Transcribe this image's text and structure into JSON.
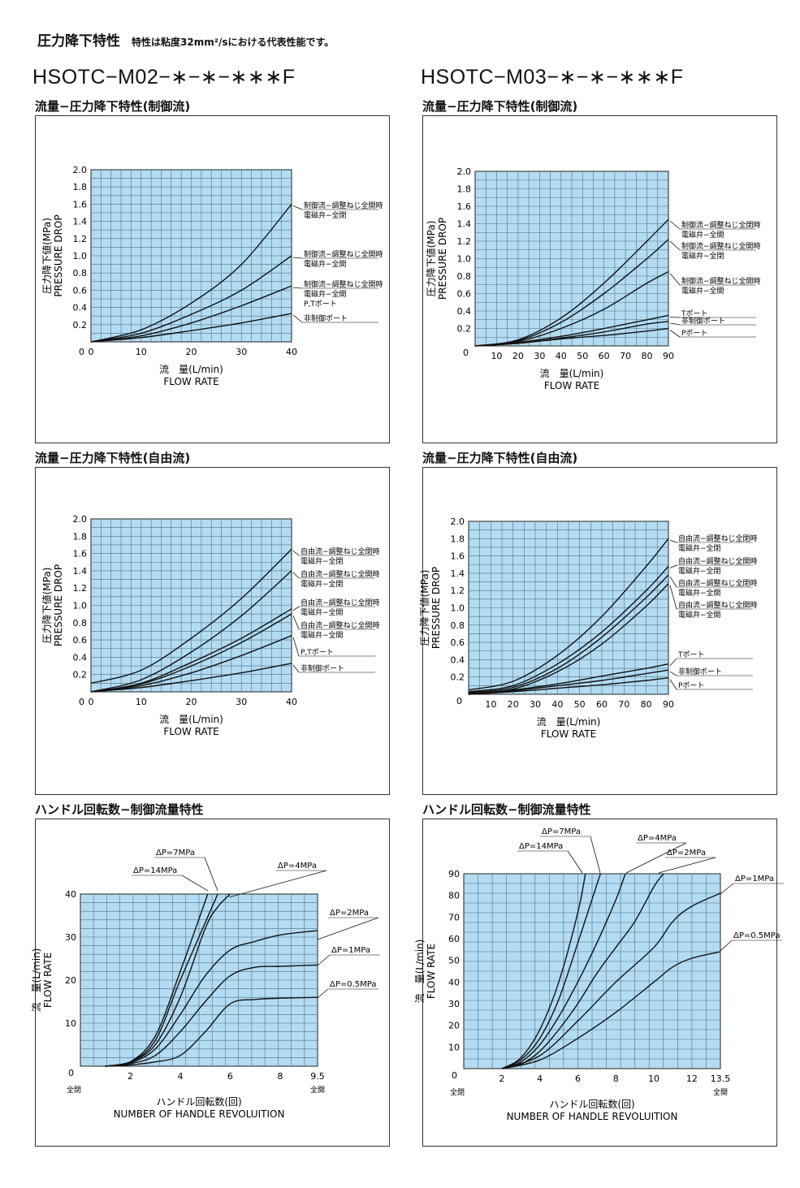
{
  "header": {
    "title": "圧力降下特性",
    "note": "特性は粘度32mm²/sにおける代表性能です。"
  },
  "models": {
    "left": "HSOTC−M02−∗−∗−∗∗∗F",
    "right": "HSOTC−M03−∗−∗−∗∗∗F"
  },
  "sections": {
    "controlled": "流量−圧力降下特性(制御流)",
    "free": "流量−圧力降下特性(自由流)",
    "handle": "ハンドル回転数−制御流量特性"
  },
  "chart_data": [
    {
      "id": "m02_control",
      "type": "line",
      "xlabel": "流　量(L/min)",
      "xlabel2": "FLOW RATE",
      "ylabel": "圧力降下値(MPa)",
      "ylabel2": "PRESSURE DROP",
      "xlim": [
        0,
        40
      ],
      "ylim": [
        0,
        2.0
      ],
      "xticks": [
        0,
        10,
        20,
        30,
        40
      ],
      "yticks": [
        0.2,
        0.4,
        0.6,
        0.8,
        1.0,
        1.2,
        1.4,
        1.6,
        1.8,
        2.0
      ],
      "series": [
        {
          "x": [
            0,
            10,
            20,
            30,
            40
          ],
          "y": [
            0,
            0.14,
            0.45,
            0.9,
            1.6
          ]
        },
        {
          "x": [
            0,
            10,
            20,
            30,
            40
          ],
          "y": [
            0,
            0.1,
            0.32,
            0.6,
            1.0
          ]
        },
        {
          "x": [
            0,
            10,
            20,
            30,
            40
          ],
          "y": [
            0,
            0.07,
            0.22,
            0.42,
            0.65
          ]
        },
        {
          "x": [
            0,
            10,
            20,
            30,
            40
          ],
          "y": [
            0,
            0.05,
            0.13,
            0.22,
            0.33
          ]
        }
      ],
      "labels": [
        {
          "lines": [
            "制御流−調整ねじ全開時",
            "電磁弁−全閉"
          ],
          "target": 0
        },
        {
          "lines": [
            "制御流−調整ねじ全開時",
            "電磁弁−全開"
          ],
          "target": 1
        },
        {
          "lines": [
            "制御流−調整ねじ全開時",
            "電磁弁−全開",
            "P,Tポート"
          ],
          "target": 2
        },
        {
          "lines": [
            "非制御ポート"
          ],
          "target": 3
        }
      ]
    },
    {
      "id": "m03_control",
      "type": "line",
      "xlabel": "流　量(L/min)",
      "xlabel2": "FLOW RATE",
      "ylabel": "圧力降下値(MPa)",
      "ylabel2": "PRESSURE DROP",
      "xlim": [
        0,
        90
      ],
      "ylim": [
        0,
        2.0
      ],
      "xticks": [
        10,
        20,
        30,
        40,
        50,
        60,
        70,
        80,
        90
      ],
      "yticks": [
        0.2,
        0.4,
        0.6,
        0.8,
        1.0,
        1.2,
        1.4,
        1.6,
        1.8,
        2.0
      ],
      "origin_label": "0",
      "series": [
        {
          "x": [
            0,
            20,
            40,
            60,
            80,
            90
          ],
          "y": [
            0,
            0.07,
            0.32,
            0.72,
            1.2,
            1.45
          ]
        },
        {
          "x": [
            0,
            20,
            40,
            60,
            80,
            90
          ],
          "y": [
            0,
            0.06,
            0.27,
            0.6,
            1.0,
            1.22
          ]
        },
        {
          "x": [
            0,
            20,
            40,
            60,
            80,
            90
          ],
          "y": [
            0,
            0.05,
            0.2,
            0.42,
            0.72,
            0.85
          ]
        },
        {
          "x": [
            0,
            20,
            40,
            60,
            80,
            90
          ],
          "y": [
            0,
            0.04,
            0.11,
            0.2,
            0.3,
            0.35
          ]
        },
        {
          "x": [
            0,
            20,
            40,
            60,
            80,
            90
          ],
          "y": [
            0,
            0.03,
            0.09,
            0.16,
            0.25,
            0.28
          ]
        },
        {
          "x": [
            0,
            20,
            40,
            60,
            80,
            90
          ],
          "y": [
            0,
            0.03,
            0.08,
            0.12,
            0.17,
            0.2
          ]
        }
      ],
      "labels": [
        {
          "lines": [
            "制御流−調整ねじ全閉時",
            "電磁弁−全開"
          ],
          "target": 0
        },
        {
          "lines": [
            "制御流−調整ねじ全開時",
            "電磁弁−全閉"
          ],
          "target": 1
        },
        {
          "lines": [
            "制御流−調整ねじ全開時",
            "電磁弁−全開"
          ],
          "target": 2
        },
        {
          "lines": [
            "Tポート"
          ],
          "target": 3
        },
        {
          "lines": [
            "非制御ポート"
          ],
          "target": 4
        },
        {
          "lines": [
            "Pポート"
          ],
          "target": 5
        }
      ]
    },
    {
      "id": "m02_free",
      "type": "line",
      "xlabel": "流　量(L/min)",
      "xlabel2": "FLOW RATE",
      "ylabel": "圧力降下値(MPa)",
      "ylabel2": "PRESSURE DROP",
      "xlim": [
        0,
        40
      ],
      "ylim": [
        0,
        2.0
      ],
      "xticks": [
        0,
        10,
        20,
        30,
        40
      ],
      "yticks": [
        0.2,
        0.4,
        0.6,
        0.8,
        1.0,
        1.2,
        1.4,
        1.6,
        1.8,
        2.0
      ],
      "series": [
        {
          "x": [
            0,
            10,
            20,
            30,
            40
          ],
          "y": [
            0.1,
            0.25,
            0.62,
            1.08,
            1.65
          ]
        },
        {
          "x": [
            0,
            10,
            20,
            30,
            40
          ],
          "y": [
            0,
            0.14,
            0.46,
            0.88,
            1.4
          ]
        },
        {
          "x": [
            0,
            10,
            20,
            30,
            40
          ],
          "y": [
            0,
            0.1,
            0.34,
            0.62,
            0.96
          ]
        },
        {
          "x": [
            0,
            10,
            20,
            30,
            40
          ],
          "y": [
            0,
            0.09,
            0.3,
            0.57,
            0.9
          ]
        },
        {
          "x": [
            0,
            10,
            20,
            30,
            40
          ],
          "y": [
            0,
            0.07,
            0.22,
            0.42,
            0.65
          ]
        },
        {
          "x": [
            0,
            10,
            20,
            30,
            40
          ],
          "y": [
            0,
            0.05,
            0.13,
            0.22,
            0.33
          ]
        }
      ],
      "labels": [
        {
          "lines": [
            "自由流−調整ねじ全閉時",
            "電磁弁−全閉"
          ],
          "target": 0
        },
        {
          "lines": [
            "自由流−調整ねじ全開時",
            "電磁弁−全閉"
          ],
          "target": 1
        },
        {
          "lines": [
            "自由流−調整ねじ全閉時",
            "電磁弁−全開"
          ],
          "target": 2
        },
        {
          "lines": [
            "自由流−調整ねじ全開時",
            "電磁弁−全開"
          ],
          "target": 3
        },
        {
          "lines": [
            "P,Tポート"
          ],
          "target": 4
        },
        {
          "lines": [
            "非制御ポート"
          ],
          "target": 5
        }
      ]
    },
    {
      "id": "m03_free",
      "type": "line",
      "xlabel": "流　量(L/min)",
      "xlabel2": "FLOW RATE",
      "ylabel": "圧力降下値(MPa)",
      "ylabel2": "PRESSURE DROP",
      "xlim": [
        0,
        90
      ],
      "ylim": [
        0,
        2.0
      ],
      "xticks": [
        10,
        20,
        30,
        40,
        50,
        60,
        70,
        80,
        90
      ],
      "yticks": [
        0.2,
        0.4,
        0.6,
        0.8,
        1.0,
        1.2,
        1.4,
        1.6,
        1.8,
        2.0
      ],
      "origin_label": "0",
      "series": [
        {
          "x": [
            0,
            20,
            40,
            60,
            80,
            90
          ],
          "y": [
            0.05,
            0.15,
            0.45,
            0.9,
            1.48,
            1.8
          ]
        },
        {
          "x": [
            0,
            20,
            40,
            60,
            80,
            90
          ],
          "y": [
            0.03,
            0.1,
            0.35,
            0.72,
            1.2,
            1.48
          ]
        },
        {
          "x": [
            0,
            20,
            40,
            60,
            80,
            90
          ],
          "y": [
            0.02,
            0.08,
            0.3,
            0.66,
            1.12,
            1.38
          ]
        },
        {
          "x": [
            0,
            20,
            40,
            60,
            80,
            90
          ],
          "y": [
            0.01,
            0.06,
            0.26,
            0.58,
            1.02,
            1.28
          ]
        },
        {
          "x": [
            0,
            20,
            40,
            60,
            80,
            90
          ],
          "y": [
            0,
            0.05,
            0.12,
            0.21,
            0.3,
            0.35
          ]
        },
        {
          "x": [
            0,
            20,
            40,
            60,
            80,
            90
          ],
          "y": [
            0,
            0.04,
            0.1,
            0.16,
            0.24,
            0.28
          ]
        },
        {
          "x": [
            0,
            20,
            40,
            60,
            80,
            90
          ],
          "y": [
            0,
            0.03,
            0.07,
            0.11,
            0.16,
            0.19
          ]
        }
      ],
      "labels": [
        {
          "lines": [
            "自由流−調整ねじ全閉時",
            "電磁弁−全閉"
          ],
          "target": 0
        },
        {
          "lines": [
            "自由流−調整ねじ全開時",
            "電磁弁−全閉"
          ],
          "target": 1
        },
        {
          "lines": [
            "自由流−調整ねじ全閉時",
            "電磁弁−全開"
          ],
          "target": 2
        },
        {
          "lines": [
            "自由流−調整ねじ全開時",
            "電磁弁−全開"
          ],
          "target": 3
        },
        {
          "lines": [
            "Tポート"
          ],
          "target": 4
        },
        {
          "lines": [
            "非制御ポート"
          ],
          "target": 5
        },
        {
          "lines": [
            "Pポート"
          ],
          "target": 6
        }
      ]
    },
    {
      "id": "m02_handle",
      "type": "line",
      "xlabel": "ハンドル回転数(回)",
      "xlabel2": "NUMBER OF HANDLE REVOLUITION",
      "ylabel": "流　量(L/min)",
      "ylabel2": "FLOW RATE",
      "xlim": [
        0,
        9.5
      ],
      "ylim": [
        0,
        40
      ],
      "xticks": [
        2,
        4,
        6,
        8,
        9.5
      ],
      "yticks": [
        10,
        20,
        30,
        40
      ],
      "origin_label": "0",
      "x_start_label": "全閉",
      "x_end_label": "全開",
      "series": [
        {
          "name": "ΔP=14MPa",
          "x": [
            1,
            2,
            3,
            4,
            5.1
          ],
          "y": [
            0,
            1,
            7,
            22,
            40
          ]
        },
        {
          "name": "ΔP=7MPa",
          "x": [
            1,
            2,
            3,
            4,
            5.5
          ],
          "y": [
            0,
            1,
            6,
            20,
            40
          ]
        },
        {
          "name": "ΔP=4MPa",
          "x": [
            1,
            2,
            3,
            4,
            5,
            5.5,
            6
          ],
          "y": [
            0,
            1,
            5,
            16,
            32,
            37,
            40
          ]
        },
        {
          "name": "ΔP=2MPa",
          "x": [
            1,
            2,
            3,
            4,
            5,
            6,
            7,
            8,
            9.5
          ],
          "y": [
            0,
            0.8,
            4,
            12,
            21,
            27,
            29,
            30.5,
            31.5
          ]
        },
        {
          "name": "ΔP=1MPa",
          "x": [
            1,
            2,
            3,
            4,
            5,
            6,
            7,
            8,
            9.5
          ],
          "y": [
            0,
            0.6,
            2.5,
            8,
            15,
            21,
            23,
            23.2,
            23.5
          ]
        },
        {
          "name": "ΔP=0.5MPa",
          "x": [
            1,
            2,
            3,
            4,
            5,
            6,
            7,
            8,
            9.5
          ],
          "y": [
            0,
            0.3,
            1,
            2.5,
            8,
            14.5,
            15.5,
            15.8,
            16
          ]
        }
      ]
    },
    {
      "id": "m03_handle",
      "type": "line",
      "xlabel": "ハンドル回転数(回)",
      "xlabel2": "NUMBER OF HANDLE REVOLUITION",
      "ylabel": "流　量(L/min)",
      "ylabel2": "FLOW RATE",
      "xlim": [
        0,
        13.5
      ],
      "ylim": [
        0,
        90
      ],
      "xticks": [
        2,
        4,
        6,
        8,
        10,
        12,
        13.5
      ],
      "yticks": [
        10,
        20,
        30,
        40,
        50,
        60,
        70,
        80,
        90
      ],
      "origin_label": "0",
      "x_start_label": "全閉",
      "x_end_label": "全開",
      "series": [
        {
          "name": "ΔP=14MPa",
          "x": [
            2,
            3,
            4,
            5,
            6,
            6.4
          ],
          "y": [
            0,
            5,
            18,
            40,
            72,
            90
          ]
        },
        {
          "name": "ΔP=7MPa",
          "x": [
            2,
            3,
            4,
            5,
            6,
            7,
            7.2
          ],
          "y": [
            0,
            4,
            14,
            32,
            58,
            85,
            90
          ]
        },
        {
          "name": "ΔP=4MPa",
          "x": [
            2,
            3,
            4,
            5,
            6,
            7,
            8,
            8.5
          ],
          "y": [
            0,
            3,
            11,
            24,
            40,
            58,
            78,
            90
          ]
        },
        {
          "name": "ΔP=2MPa",
          "x": [
            2,
            3,
            4,
            5,
            6,
            7,
            8,
            9,
            10,
            10.5
          ],
          "y": [
            0,
            2,
            8,
            18,
            30,
            44,
            56,
            68,
            84,
            90
          ]
        },
        {
          "name": "ΔP=1MPa",
          "x": [
            2,
            4,
            6,
            8,
            10,
            11,
            12,
            13.5
          ],
          "y": [
            0,
            6,
            22,
            40,
            56,
            68,
            75,
            81
          ]
        },
        {
          "name": "ΔP=0.5MPa",
          "x": [
            2,
            4,
            6,
            8,
            10,
            11,
            12,
            13.5
          ],
          "y": [
            0,
            4,
            14,
            26,
            40,
            47,
            51,
            54
          ]
        }
      ]
    }
  ]
}
